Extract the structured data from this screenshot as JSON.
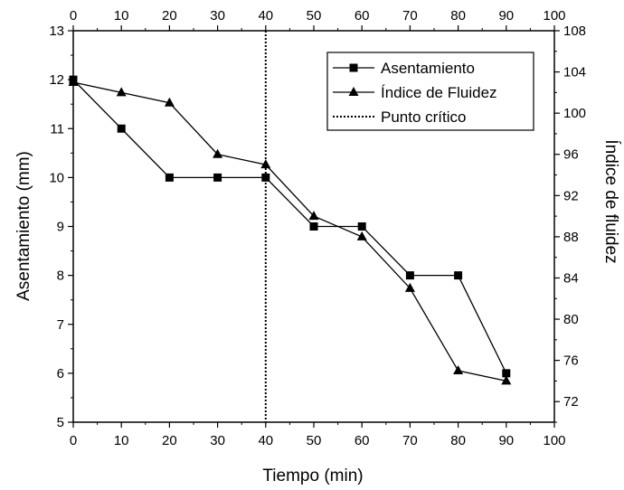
{
  "chart_data": {
    "type": "line",
    "xlabel": "Tiempo (min)",
    "ylabel": "Asentamiento (mm)",
    "y2label": "Índice de fluidez",
    "xlim": [
      0,
      100
    ],
    "ylim": [
      5,
      13
    ],
    "y2lim": [
      70,
      108
    ],
    "xticks": [
      "0",
      "10",
      "20",
      "30",
      "40",
      "50",
      "60",
      "70",
      "80",
      "90",
      "100"
    ],
    "yticks": [
      "5",
      "6",
      "7",
      "8",
      "9",
      "10",
      "11",
      "12",
      "13"
    ],
    "y2ticks": [
      "72",
      "76",
      "80",
      "84",
      "88",
      "92",
      "96",
      "100",
      "104",
      "108"
    ],
    "legend_position": "top-right",
    "grid": false,
    "series": [
      {
        "name": "Asentamiento",
        "axis": "left",
        "marker": "square",
        "x": [
          0,
          10,
          20,
          30,
          40,
          50,
          60,
          70,
          80,
          90
        ],
        "values": [
          12,
          11,
          10,
          10,
          10,
          9,
          9,
          8,
          8,
          6
        ]
      },
      {
        "name": "Índice de Fluidez",
        "axis": "right",
        "marker": "triangle",
        "x": [
          0,
          10,
          20,
          30,
          40,
          50,
          60,
          70,
          80,
          90
        ],
        "values": [
          103,
          102,
          101,
          96,
          95,
          90,
          88,
          83,
          75,
          74
        ]
      }
    ],
    "reference_lines": [
      {
        "name": "Punto crítico",
        "x": 40,
        "style": "dotted"
      }
    ]
  }
}
